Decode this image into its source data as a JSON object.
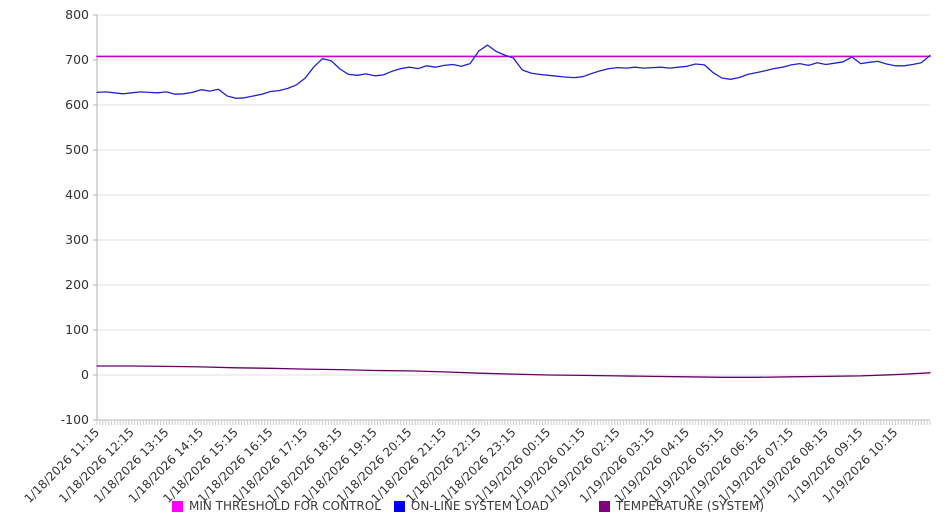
{
  "chart_data": {
    "type": "line",
    "title": "",
    "xlabel": "",
    "ylabel": "",
    "ylim": [
      -100,
      800
    ],
    "y_ticks": [
      800,
      700,
      600,
      500,
      400,
      300,
      200,
      100,
      0,
      -100
    ],
    "x_hours": 24,
    "minor_ticks_per_hour": 12,
    "grid": "horizontal-only",
    "legend_position": "bottom",
    "x_tick_labels": [
      "1/18/2026 11:15",
      "1/18/2026 12:15",
      "1/18/2026 13:15",
      "1/18/2026 14:15",
      "1/18/2026 15:15",
      "1/18/2026 16:15",
      "1/18/2026 17:15",
      "1/18/2026 18:15",
      "1/18/2026 19:15",
      "1/18/2026 20:15",
      "1/18/2026 21:15",
      "1/18/2026 22:15",
      "1/18/2026 23:15",
      "1/19/2026 00:15",
      "1/19/2026 01:15",
      "1/19/2026 02:15",
      "1/19/2026 03:15",
      "1/19/2026 04:15",
      "1/19/2026 05:15",
      "1/19/2026 06:15",
      "1/19/2026 07:15",
      "1/19/2026 08:15",
      "1/19/2026 09:15",
      "1/19/2026 10:15"
    ],
    "colors": {
      "grid": "#e2e2e2",
      "axis": "#b3b3b3",
      "minor_tick": "#c8c8c8",
      "tick_text": "#333333"
    },
    "series": [
      {
        "name": "MIN THRESHOLD FOR CONTROL",
        "type": "threshold",
        "value": 708,
        "color": "#cc00cc",
        "legend_color": "#ff00ff",
        "width": 1.6
      },
      {
        "name": "ON-LINE SYSTEM LOAD",
        "type": "points",
        "x_start": 0,
        "x_step": 0.25,
        "color": "#2222cc",
        "legend_color": "#0000ee",
        "width": 1.3,
        "values": [
          628,
          629,
          627,
          625,
          627,
          629,
          628,
          627,
          629,
          624,
          625,
          628,
          634,
          631,
          635,
          620,
          615,
          616,
          620,
          624,
          630,
          632,
          637,
          645,
          660,
          685,
          703,
          698,
          680,
          668,
          666,
          669,
          665,
          667,
          675,
          681,
          684,
          681,
          687,
          684,
          688,
          690,
          686,
          692,
          720,
          733,
          719,
          711,
          704,
          678,
          671,
          668,
          666,
          664,
          662,
          661,
          663,
          670,
          676,
          681,
          683,
          682,
          684,
          682,
          683,
          684,
          682,
          684,
          686,
          691,
          689,
          672,
          660,
          657,
          661,
          668,
          672,
          676,
          681,
          684,
          689,
          692,
          688,
          694,
          690,
          693,
          696,
          707,
          692,
          695,
          697,
          691,
          687,
          687,
          690,
          694,
          710
        ]
      },
      {
        "name": "TEMPERATURE (SYSTEM)",
        "type": "points",
        "x_start": 0,
        "x_step": 1,
        "color": "#660066",
        "legend_color": "#800080",
        "width": 1.3,
        "values": [
          20,
          20,
          19,
          18,
          16,
          15,
          13,
          12,
          10,
          9,
          7,
          4,
          2,
          0,
          -1,
          -2,
          -3,
          -4,
          -5,
          -5,
          -4,
          -3,
          -2,
          1,
          5
        ]
      }
    ]
  }
}
